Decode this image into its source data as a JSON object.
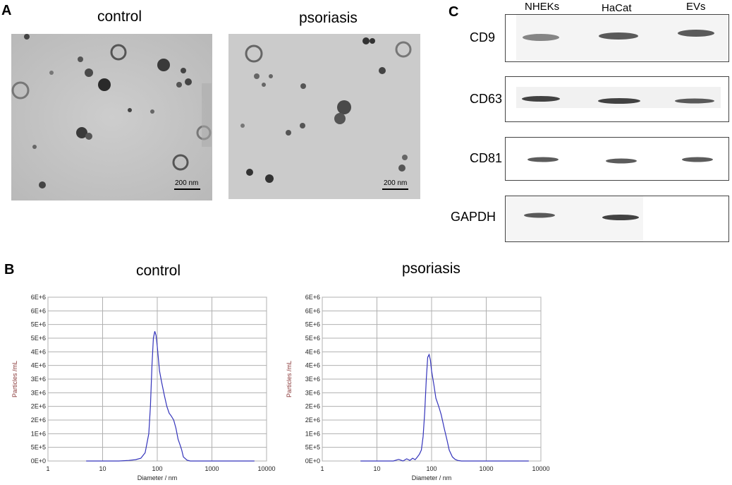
{
  "panelA": {
    "letter": "A",
    "control_title": "control",
    "psoriasis_title": "psoriasis",
    "scale_label": "200 nm"
  },
  "panelB": {
    "letter": "B",
    "control_title": "control",
    "psoriasis_title": "psoriasis"
  },
  "panelC": {
    "letter": "C",
    "lanes": [
      "NHEKs",
      "HaCat",
      "EVs"
    ],
    "markers": [
      {
        "name": "CD9",
        "bands": [
          true,
          true,
          true
        ]
      },
      {
        "name": "CD63",
        "bands": [
          true,
          true,
          true
        ]
      },
      {
        "name": "CD81",
        "bands": [
          true,
          true,
          true
        ]
      },
      {
        "name": "GAPDH",
        "bands": [
          true,
          true,
          false
        ]
      }
    ]
  },
  "chart_data": [
    {
      "type": "line",
      "title": "control",
      "xlabel": "Diameter / nm",
      "ylabel": "Particles /mL",
      "xscale": "log",
      "xlim": [
        1,
        10000
      ],
      "ylim": [
        0,
        6000000
      ],
      "xticks": [
        "1",
        "10",
        "100",
        "1000",
        "10000"
      ],
      "yticks": [
        "0E+0",
        "5E+5",
        "1E+6",
        "2E+6",
        "2E+6",
        "3E+6",
        "3E+6",
        "4E+6",
        "4E+6",
        "5E+6",
        "5E+6",
        "6E+6",
        "6E+6"
      ],
      "grid": true,
      "color": "#3333bb",
      "series": [
        {
          "x": [
            5,
            20,
            30,
            40,
            50,
            60,
            70,
            75,
            80,
            85,
            90,
            95,
            100,
            110,
            120,
            135,
            150,
            165,
            180,
            200,
            220,
            240,
            260,
            280,
            300,
            350,
            400,
            500,
            1000,
            2000,
            6000
          ],
          "y": [
            0,
            0,
            20000,
            50000,
            100000,
            300000,
            1000000,
            2000000,
            3500000,
            4500000,
            4750000,
            4600000,
            4200000,
            3300000,
            2900000,
            2400000,
            2000000,
            1750000,
            1650000,
            1500000,
            1200000,
            800000,
            600000,
            400000,
            150000,
            30000,
            0,
            0,
            0,
            0,
            0
          ]
        }
      ]
    },
    {
      "type": "line",
      "title": "psoriasis",
      "xlabel": "Diameter / nm",
      "ylabel": "Particles /mL",
      "xscale": "log",
      "xlim": [
        1,
        10000
      ],
      "ylim": [
        0,
        6000000
      ],
      "xticks": [
        "1",
        "10",
        "100",
        "1000",
        "10000"
      ],
      "yticks": [
        "0E+0",
        "5E+5",
        "1E+6",
        "2E+6",
        "2E+6",
        "3E+6",
        "3E+6",
        "4E+6",
        "4E+6",
        "5E+6",
        "5E+6",
        "6E+6",
        "6E+6"
      ],
      "grid": true,
      "color": "#3333bb",
      "series": [
        {
          "x": [
            5,
            20,
            25,
            30,
            35,
            40,
            45,
            50,
            55,
            60,
            65,
            70,
            75,
            80,
            85,
            90,
            95,
            100,
            110,
            120,
            130,
            140,
            150,
            170,
            190,
            210,
            240,
            270,
            300,
            350,
            500,
            1000,
            6000
          ],
          "y": [
            0,
            0,
            60000,
            0,
            80000,
            20000,
            100000,
            50000,
            150000,
            250000,
            400000,
            900000,
            1800000,
            3000000,
            3800000,
            3900000,
            3700000,
            3300000,
            2800000,
            2300000,
            2100000,
            1900000,
            1700000,
            1200000,
            800000,
            400000,
            150000,
            60000,
            20000,
            0,
            0,
            0,
            0
          ]
        }
      ]
    }
  ]
}
